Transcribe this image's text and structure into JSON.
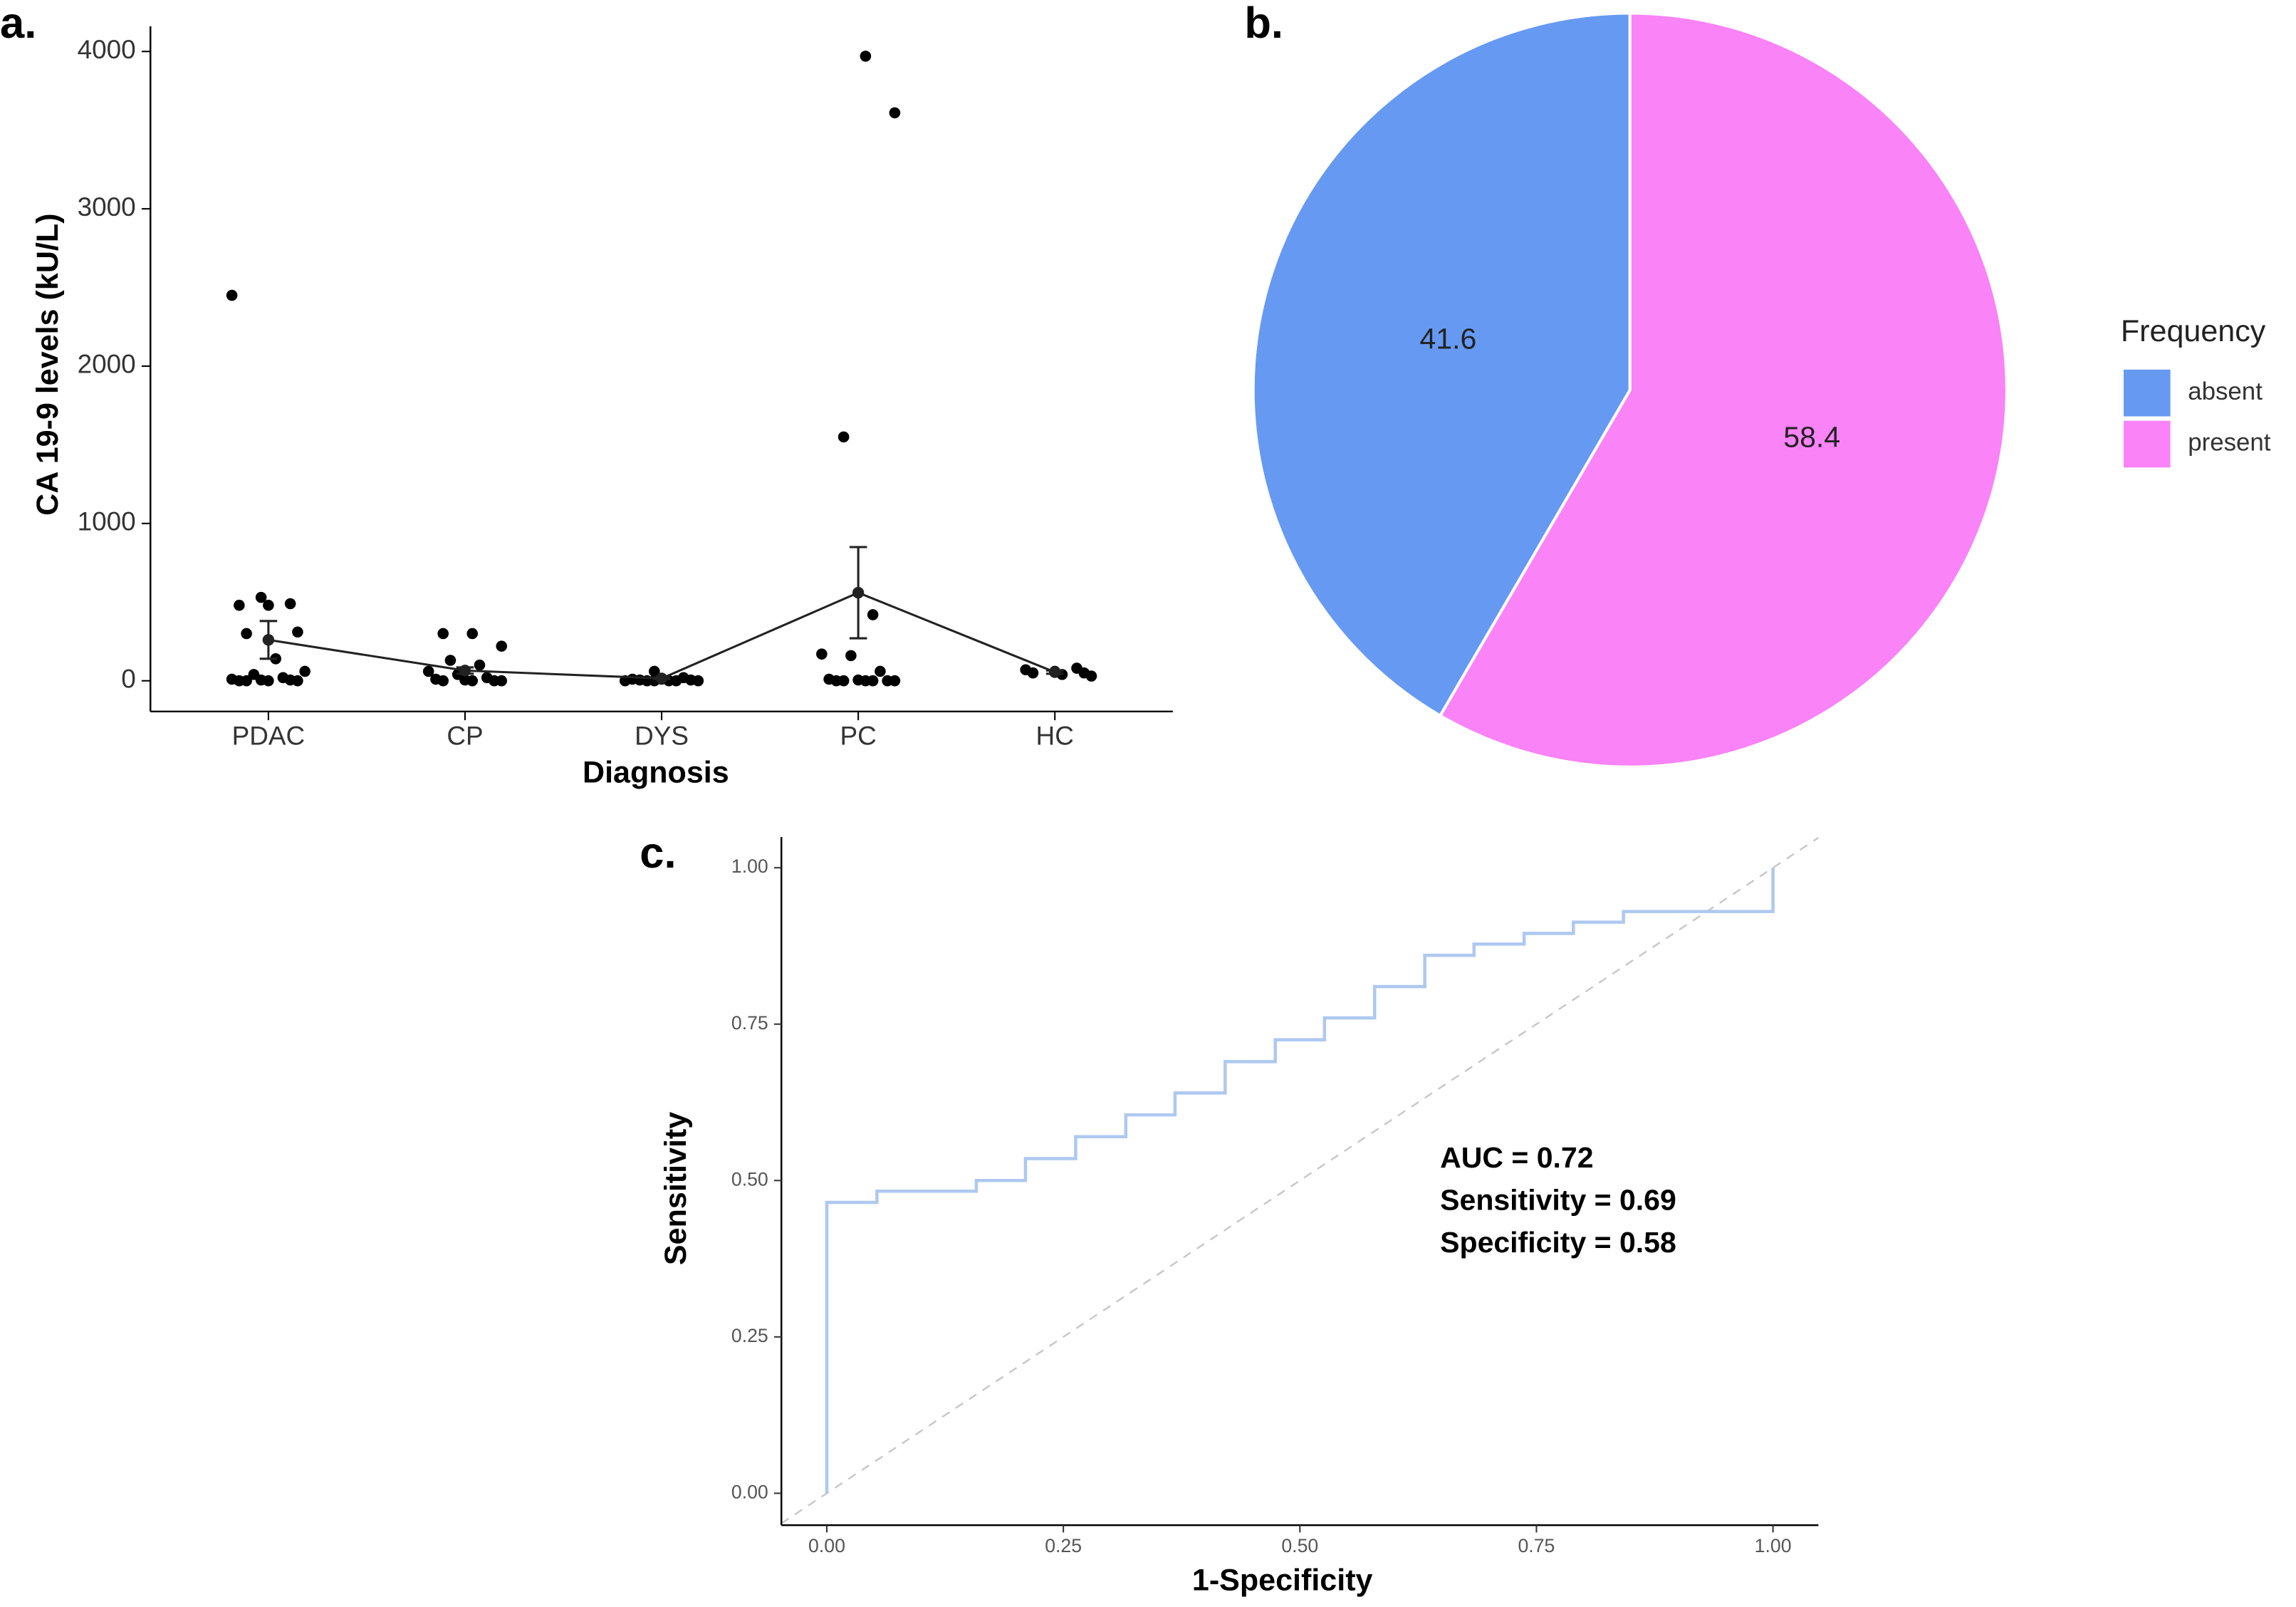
{
  "chart_data": [
    {
      "type": "strip",
      "panel": "a.",
      "xlabel": "Diagnosis",
      "ylabel": "CA 19-9 levels (kU/L)",
      "categories": [
        "PDAC",
        "CP",
        "DYS",
        "PC",
        "HC"
      ],
      "points": [
        [
          2450,
          530,
          490,
          480,
          480,
          310,
          300,
          140,
          60,
          40,
          20,
          10,
          5,
          5,
          0,
          0,
          0,
          0
        ],
        [
          300,
          300,
          220,
          130,
          100,
          60,
          40,
          20,
          10,
          5,
          0,
          0,
          0,
          0
        ],
        [
          60,
          20,
          10,
          10,
          5,
          5,
          0,
          0,
          0,
          0,
          0,
          0
        ],
        [
          3970,
          3610,
          1550,
          420,
          170,
          160,
          60,
          10,
          5,
          0,
          0,
          0,
          0,
          0,
          0
        ],
        [
          80,
          70,
          60,
          50,
          50,
          40,
          30
        ]
      ],
      "means": [
        260,
        65,
        15,
        560,
        55
      ],
      "errors": [
        120,
        20,
        5,
        290,
        10
      ],
      "color": "#000000",
      "ylim": [
        -195,
        4160
      ],
      "yticks": [
        0,
        1000,
        2000,
        3000,
        4000
      ]
    },
    {
      "type": "pie",
      "panel": "b.",
      "legend_title": "Frequency",
      "categories": [
        "absent",
        "present"
      ],
      "values": [
        41.6,
        58.4
      ],
      "colors": [
        "#6699f2",
        "#f983f7"
      ]
    },
    {
      "type": "roc",
      "panel": "c.",
      "xlabel": "1-Specificity",
      "ylabel": "Sensitivity",
      "color": "#aec8f0",
      "x": [
        0,
        0,
        0.053,
        0.053,
        0.158,
        0.158,
        0.21,
        0.21,
        0.263,
        0.263,
        0.316,
        0.316,
        0.368,
        0.368,
        0.421,
        0.421,
        0.474,
        0.474,
        0.526,
        0.526,
        0.579,
        0.579,
        0.632,
        0.632,
        0.684,
        0.684,
        0.737,
        0.737,
        0.789,
        0.789,
        0.842,
        0.842,
        1,
        1
      ],
      "y": [
        0,
        0.465,
        0.465,
        0.483,
        0.483,
        0.5,
        0.5,
        0.535,
        0.535,
        0.57,
        0.57,
        0.605,
        0.605,
        0.64,
        0.64,
        0.69,
        0.69,
        0.725,
        0.725,
        0.76,
        0.76,
        0.81,
        0.81,
        0.86,
        0.86,
        0.878,
        0.878,
        0.895,
        0.895,
        0.913,
        0.913,
        0.93,
        0.93,
        1
      ],
      "xlim": [
        -0.048,
        1.048
      ],
      "ylim": [
        -0.051,
        1.049
      ],
      "xticks": [
        {
          "value": 0,
          "label": "0.00"
        },
        {
          "value": 0.25,
          "label": "0.25"
        },
        {
          "value": 0.5,
          "label": "0.50"
        },
        {
          "value": 0.75,
          "label": "0.75"
        },
        {
          "value": 1,
          "label": "1.00"
        }
      ],
      "yticks": [
        {
          "value": 0,
          "label": "0.00"
        },
        {
          "value": 0.25,
          "label": "0.25"
        },
        {
          "value": 0.5,
          "label": "0.50"
        },
        {
          "value": 0.75,
          "label": "0.75"
        },
        {
          "value": 1,
          "label": "1.00"
        }
      ],
      "annotations": [
        "AUC = 0.72",
        "Sensitivity = 0.69",
        "Specificity = 0.58"
      ]
    }
  ]
}
